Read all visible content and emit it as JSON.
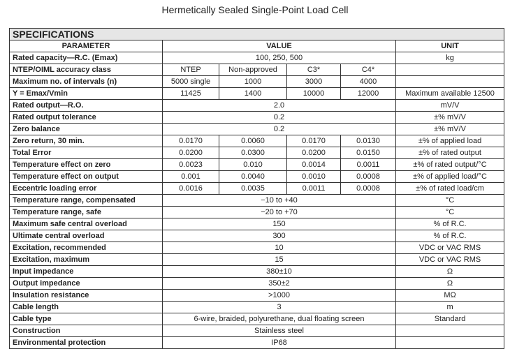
{
  "title": "Hermetically Sealed Single-Point Load Cell",
  "section": "SPECIFICATIONS",
  "headers": {
    "parameter": "PARAMETER",
    "value": "VALUE",
    "unit": "UNIT"
  },
  "rows": [
    {
      "parameter": "Rated capacity—R.C. (Emax)",
      "value": "100, 250, 500",
      "unit": "kg"
    },
    {
      "parameter": "NTEP/OIML accuracy class",
      "values": [
        "NTEP",
        "Non-approved",
        "C3*",
        "C4*"
      ],
      "unit": ""
    },
    {
      "parameter": "Maximum no. of intervals (n)",
      "values": [
        "5000 single",
        "1000",
        "3000",
        "4000"
      ],
      "unit": ""
    },
    {
      "parameter": "Y = Emax/Vmin",
      "values": [
        "11425",
        "1400",
        "10000",
        "12000"
      ],
      "unit": "Maximum available 12500"
    },
    {
      "parameter": "Rated output—R.O.",
      "value": "2.0",
      "unit": "mV/V"
    },
    {
      "parameter": "Rated output tolerance",
      "value": "0.2",
      "unit": "±% mV/V"
    },
    {
      "parameter": "Zero balance",
      "value": "0.2",
      "unit": "±% mV/V"
    },
    {
      "parameter": "Zero return, 30 min.",
      "values": [
        "0.0170",
        "0.0060",
        "0.0170",
        "0.0130"
      ],
      "unit": "±% of applied load"
    },
    {
      "parameter": "Total Error",
      "values": [
        "0.0200",
        "0.0300",
        "0.0200",
        "0.0150"
      ],
      "unit": "±% of rated output"
    },
    {
      "parameter": "Temperature effect on zero",
      "values": [
        "0.0023",
        "0.010",
        "0.0014",
        "0.0011"
      ],
      "unit": "±% of rated output/°C"
    },
    {
      "parameter": "Temperature effect on output",
      "values": [
        "0.001",
        "0.0040",
        "0.0010",
        "0.0008"
      ],
      "unit": "±% of applied load/°C"
    },
    {
      "parameter": "Eccentric loading error",
      "values": [
        "0.0016",
        "0.0035",
        "0.0011",
        "0.0008"
      ],
      "unit": "±% of rated load/cm"
    },
    {
      "parameter": "Temperature range, compensated",
      "value": "−10 to +40",
      "unit": "°C"
    },
    {
      "parameter": "Temperature range, safe",
      "value": "−20 to +70",
      "unit": "°C"
    },
    {
      "parameter": "Maximum safe central overload",
      "value": "150",
      "unit": "% of R.C."
    },
    {
      "parameter": "Ultimate central overload",
      "value": "300",
      "unit": "% of R.C."
    },
    {
      "parameter": "Excitation, recommended",
      "value": "10",
      "unit": "VDC or VAC RMS"
    },
    {
      "parameter": "Excitation, maximum",
      "value": "15",
      "unit": "VDC or VAC RMS"
    },
    {
      "parameter": "Input impedance",
      "value": "380±10",
      "unit": "Ω"
    },
    {
      "parameter": "Output impedance",
      "value": "350±2",
      "unit": "Ω"
    },
    {
      "parameter": "Insulation resistance",
      "value": ">1000",
      "unit": "MΩ"
    },
    {
      "parameter": "Cable length",
      "value": "3",
      "unit": "m"
    },
    {
      "parameter": "Cable type",
      "value": "6-wire, braided, polyurethane, dual floating screen",
      "unit": "Standard"
    },
    {
      "parameter": "Construction",
      "value": "Stainless steel",
      "unit": ""
    },
    {
      "parameter": "Environmental protection",
      "value": "IP68",
      "unit": ""
    }
  ]
}
